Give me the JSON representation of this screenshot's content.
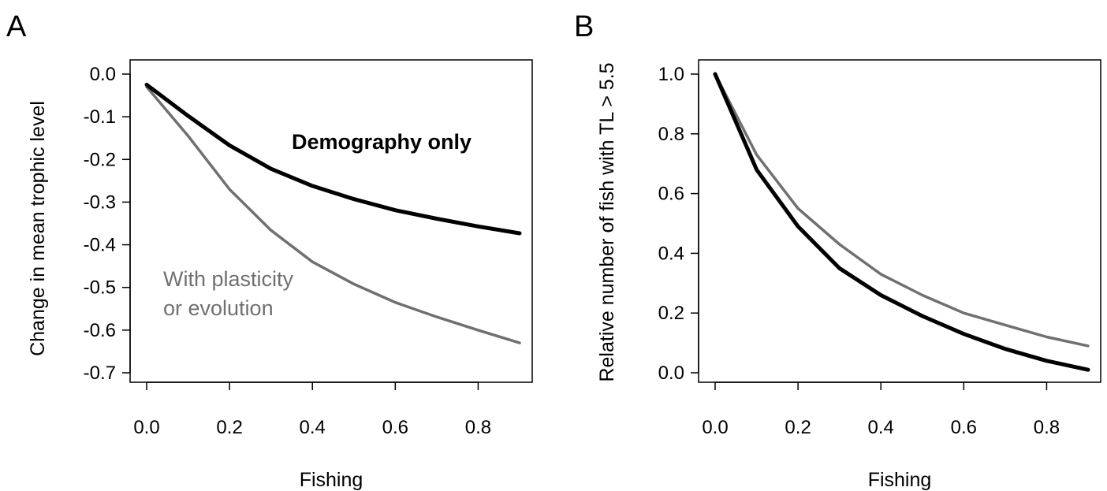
{
  "chart_data": [
    {
      "panel": "A",
      "type": "line",
      "title": "",
      "xlabel": "Fishing",
      "ylabel": "Change in mean trophic level",
      "xlim": [
        0,
        0.9
      ],
      "ylim": [
        -0.7,
        0.0
      ],
      "xticks": [
        "0.0",
        "0.2",
        "0.4",
        "0.6",
        "0.8"
      ],
      "yticks": [
        "0.0",
        "-0.1",
        "-0.2",
        "-0.3",
        "-0.4",
        "-0.5",
        "-0.6",
        "-0.7"
      ],
      "grid": false,
      "series": [
        {
          "annotation": "Demography only",
          "color": "#000000",
          "x": [
            0.0,
            0.1,
            0.2,
            0.3,
            0.4,
            0.5,
            0.6,
            0.7,
            0.8,
            0.9
          ],
          "y": [
            -0.025,
            -0.098,
            -0.167,
            -0.222,
            -0.262,
            -0.293,
            -0.319,
            -0.339,
            -0.357,
            -0.373
          ]
        },
        {
          "annotation": "With plasticity\nor evolution",
          "color": "#707070",
          "x": [
            0.0,
            0.1,
            0.2,
            0.3,
            0.4,
            0.5,
            0.6,
            0.7,
            0.8,
            0.9
          ],
          "y": [
            -0.03,
            -0.145,
            -0.27,
            -0.366,
            -0.44,
            -0.492,
            -0.535,
            -0.569,
            -0.6,
            -0.63
          ]
        }
      ],
      "annotations": [
        "Demography only",
        "With plasticity",
        "or evolution"
      ]
    },
    {
      "panel": "B",
      "type": "line",
      "title": "",
      "xlabel": "Fishing",
      "ylabel": "Relative number of fish with TL > 5.5",
      "xlim": [
        0,
        0.9
      ],
      "ylim": [
        0.0,
        1.0
      ],
      "xticks": [
        "0.0",
        "0.2",
        "0.4",
        "0.6",
        "0.8"
      ],
      "yticks": [
        "0.0",
        "0.2",
        "0.4",
        "0.6",
        "0.8",
        "1.0"
      ],
      "grid": false,
      "series": [
        {
          "color": "#000000",
          "x": [
            0.0,
            0.1,
            0.2,
            0.3,
            0.4,
            0.5,
            0.6,
            0.7,
            0.8,
            0.9
          ],
          "y": [
            1.0,
            0.68,
            0.49,
            0.35,
            0.26,
            0.19,
            0.13,
            0.08,
            0.04,
            0.01
          ]
        },
        {
          "color": "#707070",
          "x": [
            0.0,
            0.1,
            0.2,
            0.3,
            0.4,
            0.5,
            0.6,
            0.7,
            0.8,
            0.9
          ],
          "y": [
            1.0,
            0.73,
            0.55,
            0.43,
            0.33,
            0.26,
            0.2,
            0.16,
            0.12,
            0.09
          ]
        }
      ]
    }
  ]
}
